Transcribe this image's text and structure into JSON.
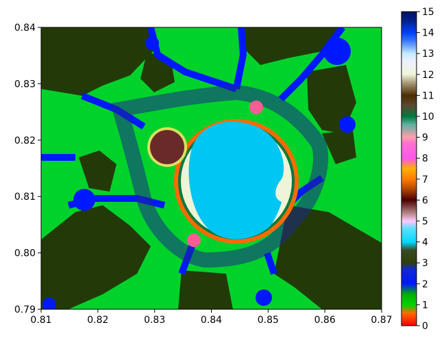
{
  "chart_data": {
    "type": "heatmap",
    "title": "",
    "xlabel": "",
    "ylabel": "",
    "xlim": [
      0.81,
      0.87
    ],
    "ylim": [
      0.79,
      0.84
    ],
    "x_ticks": [
      "0.81",
      "0.82",
      "0.83",
      "0.84",
      "0.85",
      "0.86",
      "0.87"
    ],
    "y_ticks": [
      "0.79",
      "0.80",
      "0.81",
      "0.82",
      "0.83",
      "0.84"
    ],
    "grid": false,
    "colorbar": {
      "range": [
        0,
        15
      ],
      "ticks": [
        "0",
        "1",
        "2",
        "3",
        "4",
        "5",
        "6",
        "7",
        "8",
        "9",
        "10",
        "11",
        "12",
        "13",
        "14",
        "15"
      ],
      "colormap": "gist_ncar-like",
      "colors": [
        "#ff0000",
        "#00d400",
        "#0018ff",
        "#2f3f0a",
        "#00d9ff",
        "#ffc8ff",
        "#4a0000",
        "#ff7a00",
        "#ff55ee",
        "#ff9fae",
        "#007a3f",
        "#4c2d00",
        "#eff4d6",
        "#c5ecff",
        "#0040ff",
        "#001060"
      ]
    },
    "regions_color_index": {
      "background": 1,
      "dark_regions": 3,
      "filament": 2,
      "main_cardioid": 4,
      "secondary_bulb": 6,
      "mini_bulbs": 9
    }
  }
}
